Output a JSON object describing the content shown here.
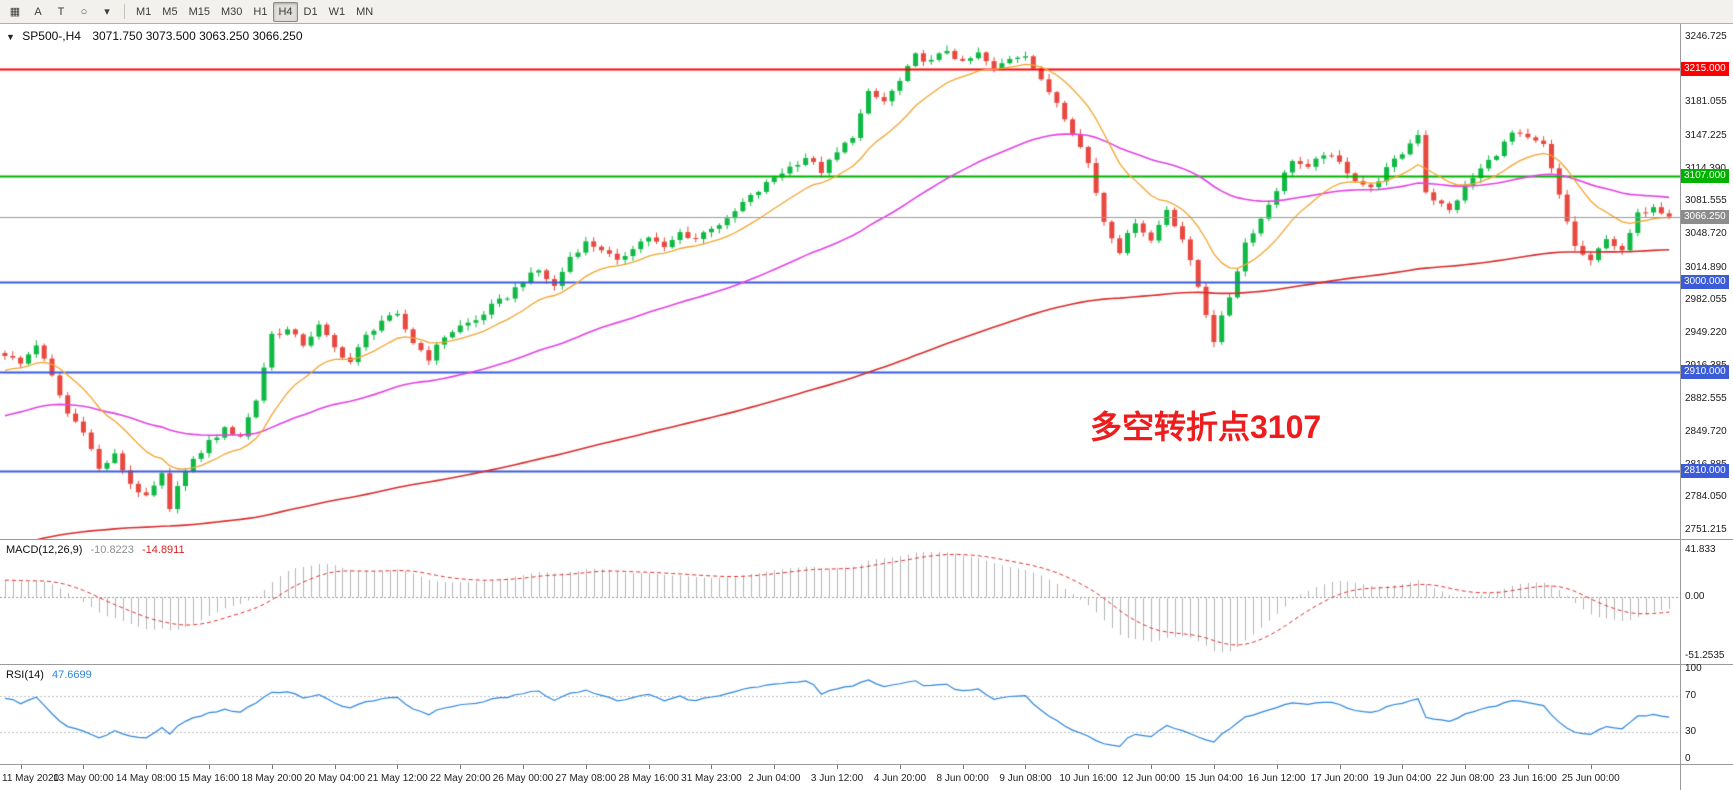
{
  "toolbar": {
    "tools": [
      {
        "name": "new-chart-icon",
        "glyph": "▦"
      },
      {
        "name": "text-a-tool-icon",
        "glyph": "A"
      },
      {
        "name": "text-t-tool-icon",
        "glyph": "T"
      },
      {
        "name": "shapes-tool-icon",
        "glyph": "○"
      },
      {
        "name": "shapes-dropdown-caret-icon",
        "glyph": "▾"
      }
    ],
    "timeframes": [
      "M1",
      "M5",
      "M15",
      "M30",
      "H1",
      "H4",
      "D1",
      "W1",
      "MN"
    ],
    "active_timeframe": "H4"
  },
  "chart": {
    "caret": "▼",
    "title_symbol": "SP500-,H4",
    "title_ohlc": "3071.750 3073.500 3063.250 3066.250",
    "annotation": {
      "text": "多空转折点3107",
      "color": "#ee1c1c"
    },
    "colors": {
      "up": "#0fb944",
      "down": "#e8483f",
      "ma_fast": "#f2a531",
      "ma_mid": "#e342e3",
      "ma_slow": "#d92b2b"
    },
    "hlines": [
      {
        "price": 3215.0,
        "label": "3215.000",
        "color": "#ff0000",
        "width": 2
      },
      {
        "price": 3107.0,
        "label": "3107.000",
        "color": "#00b200",
        "width": 2
      },
      {
        "price": 3000.0,
        "label": "3000.000",
        "color": "#3c5bd8",
        "width": 2
      },
      {
        "price": 2910.0,
        "label": "2910.000",
        "color": "#3c5bd8",
        "width": 2
      },
      {
        "price": 2810.0,
        "label": "2810.000",
        "color": "#3c5bd8",
        "width": 2
      }
    ],
    "current_price": {
      "value": 3066.25,
      "label": "3066.250",
      "line_color": "#9b9b9b",
      "label_color": "#8c8c8c"
    },
    "price_scale": {
      "min": 2742,
      "max": 3260,
      "ticks": [
        "3246.725",
        "3213.890",
        "3181.055",
        "3147.225",
        "3114.390",
        "3081.555",
        "3048.720",
        "3014.890",
        "2982.055",
        "2949.220",
        "2916.385",
        "2882.555",
        "2849.720",
        "2816.885",
        "2784.050",
        "2751.215"
      ]
    }
  },
  "macd": {
    "name": "MACD(12,26,9)",
    "value_main": "-10.8223",
    "value_signal": "-14.8911",
    "ticks": [
      "41.833",
      "0.00",
      "-51.2535"
    ],
    "range": {
      "min": -56,
      "max": 45
    },
    "colors": {
      "hist": "#b6b6b6",
      "signal": "#e03030",
      "zero": "#999999"
    }
  },
  "rsi": {
    "name": "RSI(14)",
    "value": "47.6699",
    "ticks": [
      "100",
      "70",
      "30",
      "0"
    ],
    "levels": [
      70,
      30
    ],
    "range": {
      "min": 0,
      "max": 100
    },
    "color": "#2e86de",
    "level_color": "#c0c0c0"
  },
  "time_axis": {
    "first_index": 2,
    "step": 8,
    "labels": [
      "11 May 2020",
      "13 May 00:00",
      "14 May 08:00",
      "15 May 16:00",
      "18 May 20:00",
      "20 May 04:00",
      "21 May 12:00",
      "22 May 20:00",
      "26 May 00:00",
      "27 May 08:00",
      "28 May 16:00",
      "31 May 23:00",
      "2 Jun 04:00",
      "3 Jun 12:00",
      "4 Jun 20:00",
      "8 Jun 00:00",
      "9 Jun 08:00",
      "10 Jun 16:00",
      "12 Jun 00:00",
      "15 Jun 04:00",
      "16 Jun 12:00",
      "17 Jun 20:00",
      "19 Jun 04:00",
      "22 Jun 08:00",
      "23 Jun 16:00",
      "25 Jun 00:00"
    ]
  },
  "chart_data": {
    "type": "candlestick",
    "symbol": "SP500-",
    "timeframe": "H4",
    "ohlc_current": {
      "open": 3071.75,
      "high": 3073.5,
      "low": 3063.25,
      "close": 3066.25
    },
    "candle_count": 213,
    "last_close": 3066.25,
    "y_range": [
      2742,
      3260
    ],
    "key_levels": [
      3215,
      3107,
      3000,
      2910,
      2810
    ],
    "overlays": [
      {
        "name": "fast-ma",
        "period": 13,
        "color": "#f2a531"
      },
      {
        "name": "mid-ma",
        "period": 55,
        "color": "#e342e3"
      },
      {
        "name": "slow-ma",
        "period": 200,
        "color": "#d92b2b"
      }
    ],
    "prehistory": {
      "bars": 200,
      "start": 2480
    },
    "price_path": [
      [
        0,
        2928
      ],
      [
        2,
        2918
      ],
      [
        4,
        2938
      ],
      [
        6,
        2905
      ],
      [
        8,
        2868
      ],
      [
        10,
        2852
      ],
      [
        12,
        2812
      ],
      [
        14,
        2826
      ],
      [
        16,
        2798
      ],
      [
        18,
        2783
      ],
      [
        20,
        2806
      ],
      [
        21,
        2770
      ],
      [
        22,
        2798
      ],
      [
        24,
        2820
      ],
      [
        26,
        2840
      ],
      [
        28,
        2852
      ],
      [
        30,
        2846
      ],
      [
        32,
        2882
      ],
      [
        34,
        2948
      ],
      [
        36,
        2952
      ],
      [
        38,
        2938
      ],
      [
        40,
        2956
      ],
      [
        42,
        2934
      ],
      [
        44,
        2920
      ],
      [
        46,
        2946
      ],
      [
        48,
        2962
      ],
      [
        50,
        2966
      ],
      [
        52,
        2940
      ],
      [
        54,
        2924
      ],
      [
        56,
        2946
      ],
      [
        58,
        2956
      ],
      [
        60,
        2962
      ],
      [
        62,
        2976
      ],
      [
        64,
        2986
      ],
      [
        66,
        3002
      ],
      [
        68,
        3012
      ],
      [
        70,
        2996
      ],
      [
        72,
        3026
      ],
      [
        74,
        3040
      ],
      [
        76,
        3034
      ],
      [
        78,
        3020
      ],
      [
        80,
        3036
      ],
      [
        82,
        3046
      ],
      [
        84,
        3034
      ],
      [
        86,
        3050
      ],
      [
        88,
        3044
      ],
      [
        90,
        3056
      ],
      [
        92,
        3062
      ],
      [
        94,
        3080
      ],
      [
        96,
        3092
      ],
      [
        98,
        3106
      ],
      [
        100,
        3116
      ],
      [
        102,
        3126
      ],
      [
        104,
        3112
      ],
      [
        106,
        3130
      ],
      [
        108,
        3148
      ],
      [
        110,
        3190
      ],
      [
        112,
        3182
      ],
      [
        114,
        3202
      ],
      [
        116,
        3228
      ],
      [
        118,
        3222
      ],
      [
        120,
        3234
      ],
      [
        122,
        3220
      ],
      [
        124,
        3230
      ],
      [
        126,
        3214
      ],
      [
        128,
        3226
      ],
      [
        130,
        3230
      ],
      [
        132,
        3202
      ],
      [
        134,
        3182
      ],
      [
        136,
        3152
      ],
      [
        138,
        3120
      ],
      [
        140,
        3062
      ],
      [
        142,
        3032
      ],
      [
        144,
        3062
      ],
      [
        146,
        3042
      ],
      [
        148,
        3074
      ],
      [
        150,
        3044
      ],
      [
        152,
        2996
      ],
      [
        154,
        2942
      ],
      [
        156,
        2986
      ],
      [
        158,
        3040
      ],
      [
        160,
        3064
      ],
      [
        162,
        3094
      ],
      [
        164,
        3124
      ],
      [
        166,
        3114
      ],
      [
        168,
        3130
      ],
      [
        170,
        3120
      ],
      [
        172,
        3104
      ],
      [
        174,
        3094
      ],
      [
        176,
        3114
      ],
      [
        178,
        3130
      ],
      [
        180,
        3150
      ],
      [
        181,
        3092
      ],
      [
        182,
        3084
      ],
      [
        184,
        3072
      ],
      [
        186,
        3096
      ],
      [
        188,
        3114
      ],
      [
        190,
        3130
      ],
      [
        192,
        3150
      ],
      [
        194,
        3144
      ],
      [
        196,
        3138
      ],
      [
        198,
        3088
      ],
      [
        200,
        3036
      ],
      [
        202,
        3020
      ],
      [
        204,
        3046
      ],
      [
        206,
        3030
      ],
      [
        208,
        3068
      ],
      [
        210,
        3078
      ],
      [
        212,
        3066.25
      ]
    ]
  }
}
